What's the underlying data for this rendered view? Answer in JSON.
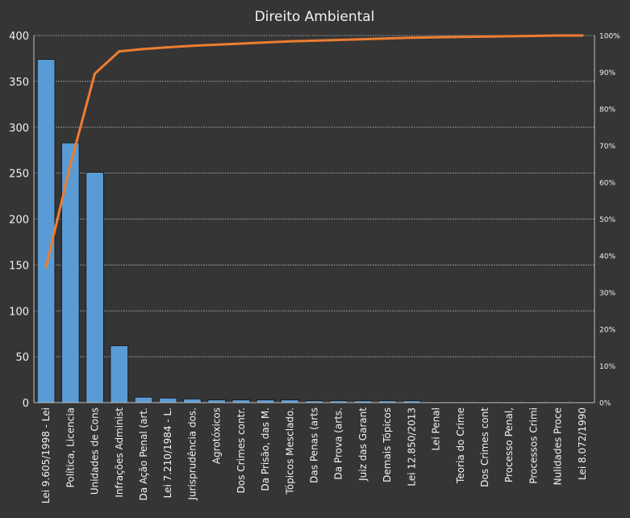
{
  "chart_data": {
    "type": "bar",
    "title": "Direito Ambiental",
    "categories": [
      "Lei 9.605/1998 - Lei",
      "Política, Licencia",
      "Unidades de Cons",
      "Infrações Administ",
      "Da Ação Penal (art.",
      "Lei 7.210/1984 - L.",
      "Jurisprudência dos.",
      "Agrotóxicos",
      "Dos Crimes contr.",
      "Da Prisão, das M.",
      "Tópicos Mesclado.",
      "Das Penas (arts",
      "Da Prova (arts.",
      "Juiz das Garant",
      "Demais Tópicos",
      "Lei 12.850/2013",
      "Lei Penal",
      "Teoria do Crime",
      "Dos Crimes cont",
      "Processo Penal,",
      "Processos Crimi",
      "Nulidades Proce",
      "Lei 8.072/1990"
    ],
    "series": [
      {
        "type": "bar",
        "values": [
          374,
          283,
          251,
          62,
          6,
          5,
          4,
          3,
          3,
          3,
          3,
          2,
          2,
          2,
          2,
          2,
          1,
          1,
          1,
          1,
          1,
          1,
          1
        ]
      },
      {
        "type": "line",
        "axis": "secondary",
        "values": [
          36.9,
          64.8,
          89.6,
          95.7,
          96.3,
          96.8,
          97.2,
          97.5,
          97.8,
          98.1,
          98.4,
          98.6,
          98.8,
          99.0,
          99.2,
          99.4,
          99.5,
          99.6,
          99.7,
          99.8,
          99.9,
          100.0,
          100.0
        ]
      }
    ],
    "yticks": [
      "0",
      "50",
      "100",
      "150",
      "200",
      "250",
      "300",
      "350",
      "400"
    ],
    "y2ticks": [
      "0%",
      "10%",
      "20%",
      "30%",
      "40%",
      "50%",
      "60%",
      "70%",
      "80%",
      "90%",
      "100%"
    ],
    "ylim": [
      0,
      400
    ],
    "y2lim": [
      0,
      100
    ],
    "grid": true,
    "colors": {
      "background": "#353535",
      "bar": "#5b9bd5",
      "bar_edge": "#1b1b1b",
      "line": "#ed7d31",
      "grid": "#d0d0d0",
      "text": "#f2f2f2"
    }
  }
}
